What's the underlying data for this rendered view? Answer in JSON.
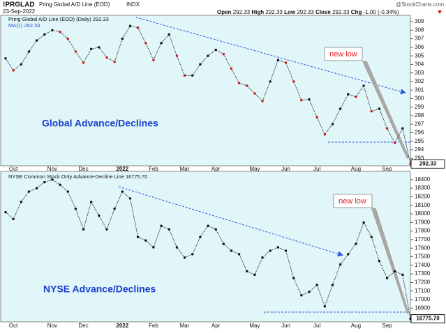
{
  "header": {
    "symbol": "!PRGLAD",
    "name": "Pring Global A/D Line (EOD)",
    "exchange": "INDX",
    "date": "23-Sep-2022",
    "source": "@StockCharts.com",
    "quote": [
      [
        "Open",
        "292.33"
      ],
      [
        "High",
        "292.33"
      ],
      [
        "Low",
        "292.33"
      ],
      [
        "Close",
        "292.33"
      ],
      [
        "Chg",
        "-1.00 (-0.34%)"
      ]
    ]
  },
  "chart_data": [
    {
      "type": "line",
      "ma_label": "MA(1) 292.33",
      "annotations": [
        "Global Advance/Declines",
        "new low"
      ],
      "categories": [
        null,
        "Oct",
        null,
        null,
        null,
        null,
        "Nov",
        null,
        null,
        null,
        "Dec",
        null,
        null,
        null,
        null,
        "2022",
        null,
        null,
        null,
        "Feb",
        null,
        null,
        null,
        "Mar",
        null,
        null,
        null,
        "Apr",
        null,
        null,
        null,
        null,
        "May",
        null,
        null,
        null,
        "Jun",
        null,
        null,
        null,
        "Jul",
        null,
        null,
        null,
        null,
        "Aug",
        null,
        null,
        null,
        "Sep",
        null,
        null,
        null
      ],
      "series": [
        {
          "name": "Pring Global A/D Line (EOD) (Daily) 292.33",
          "color": "#111111",
          "down_color": "#d01010",
          "values": [
            304.7,
            303.3,
            304,
            305.5,
            306.8,
            307.5,
            308,
            307.8,
            307,
            305.5,
            304.2,
            305.8,
            306,
            304.8,
            304.3,
            307,
            308.5,
            308.3,
            306.5,
            304.5,
            306.5,
            307.5,
            305,
            302.7,
            302.7,
            304,
            305,
            305.7,
            305.2,
            303.5,
            301.8,
            301.5,
            300.6,
            299.7,
            302,
            304.5,
            304.2,
            302,
            299.8,
            299.9,
            297.8,
            295.8,
            297,
            298.8,
            300.5,
            300.2,
            301.5,
            298.5,
            298.8,
            296.5,
            294.8,
            296.5,
            292.33
          ]
        }
      ],
      "ylim": [
        292.2,
        309.5
      ],
      "yticks": [
        293,
        294,
        295,
        296,
        297,
        298,
        299,
        300,
        301,
        302,
        303,
        304,
        305,
        306,
        307,
        308,
        309
      ],
      "grid": false
    },
    {
      "type": "line",
      "annotations": [
        "NYSE Advance/Declines",
        "new low"
      ],
      "categories": [
        null,
        "Oct",
        null,
        null,
        null,
        null,
        "Nov",
        null,
        null,
        null,
        "Dec",
        null,
        null,
        null,
        null,
        "2022",
        null,
        null,
        null,
        "Feb",
        null,
        null,
        null,
        "Mar",
        null,
        null,
        null,
        "Apr",
        null,
        null,
        null,
        null,
        "May",
        null,
        null,
        null,
        "Jun",
        null,
        null,
        null,
        "Jul",
        null,
        null,
        null,
        null,
        "Aug",
        null,
        null,
        null,
        "Sep",
        null,
        null,
        null
      ],
      "series": [
        {
          "name": "NYSE Common Stock Only Advance-Decline Line 16775.70",
          "color": "#111111",
          "values": [
            18020,
            17940,
            18140,
            18260,
            18300,
            18370,
            18400,
            18340,
            18260,
            18060,
            17820,
            18140,
            17980,
            17820,
            18060,
            18260,
            18180,
            17730,
            17690,
            17610,
            17860,
            17820,
            17610,
            17490,
            17530,
            17730,
            17860,
            17820,
            17650,
            17570,
            17530,
            17330,
            17290,
            17490,
            17570,
            17610,
            17570,
            17250,
            17050,
            17090,
            17170,
            16920,
            17170,
            17410,
            17530,
            17650,
            17900,
            17730,
            17450,
            17250,
            17330,
            17290,
            16775.7
          ],
          "value_labels": [
            null,
            null,
            null,
            null,
            null,
            null,
            null,
            null,
            null,
            null,
            null,
            null,
            null,
            null,
            null,
            null,
            null,
            null,
            null,
            null,
            null,
            null,
            null,
            null,
            null,
            null,
            null,
            null,
            null,
            null,
            null,
            null,
            null,
            null,
            null,
            null,
            null,
            null,
            null,
            null,
            null,
            null,
            null,
            null,
            null,
            null,
            null,
            null,
            null,
            null,
            null,
            null,
            "16775.70"
          ]
        }
      ],
      "ylim": [
        16740,
        18480
      ],
      "yticks": [
        16900,
        17000,
        17100,
        17200,
        17300,
        17400,
        17500,
        17600,
        17700,
        17800,
        17900,
        18000,
        18100,
        18200,
        18300,
        18400
      ],
      "grid": false
    }
  ]
}
